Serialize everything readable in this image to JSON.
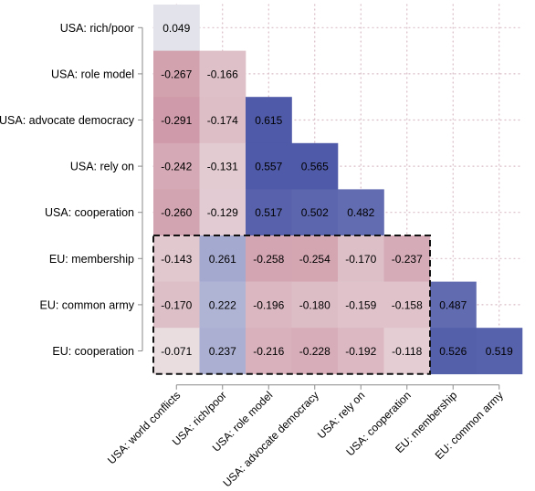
{
  "chart_data": {
    "type": "heatmap",
    "title": "",
    "xlabel": "",
    "ylabel": "",
    "grid": true,
    "legend": "none",
    "rows": [
      "USA: rich/poor",
      "USA: role model",
      "USA: advocate democracy",
      "USA: rely on",
      "USA: cooperation",
      "EU: membership",
      "EU: common army",
      "EU: cooperation"
    ],
    "columns": [
      "USA: world conflicts",
      "USA: rich/poor",
      "USA: role model",
      "USA: advocate democracy",
      "USA: rely on",
      "USA: cooperation",
      "EU: membership",
      "EU: common army"
    ],
    "values": [
      [
        "0.049",
        null,
        null,
        null,
        null,
        null,
        null,
        null
      ],
      [
        "-0.267",
        "-0.166",
        null,
        null,
        null,
        null,
        null,
        null
      ],
      [
        "-0.291",
        "-0.174",
        "0.615",
        null,
        null,
        null,
        null,
        null
      ],
      [
        "-0.242",
        "-0.131",
        "0.557",
        "0.565",
        null,
        null,
        null,
        null
      ],
      [
        "-0.260",
        "-0.129",
        "0.517",
        "0.502",
        "0.482",
        null,
        null,
        null
      ],
      [
        "-0.143",
        "0.261",
        "-0.258",
        "-0.254",
        "-0.170",
        "-0.237",
        null,
        null
      ],
      [
        "-0.170",
        "0.222",
        "-0.196",
        "-0.180",
        "-0.159",
        "-0.158",
        "0.487",
        null
      ],
      [
        "-0.071",
        "0.237",
        "-0.216",
        "-0.228",
        "-0.192",
        "-0.118",
        "0.526",
        "0.519"
      ]
    ],
    "highlight_box": {
      "rows": [
        5,
        7
      ],
      "columns": [
        0,
        5
      ],
      "style": "dashed"
    },
    "colors": {
      "positive": "#4f5aa8",
      "negative": "#b35670",
      "neutral": "#f2f2f2",
      "grid": "#d9bcc6"
    }
  }
}
